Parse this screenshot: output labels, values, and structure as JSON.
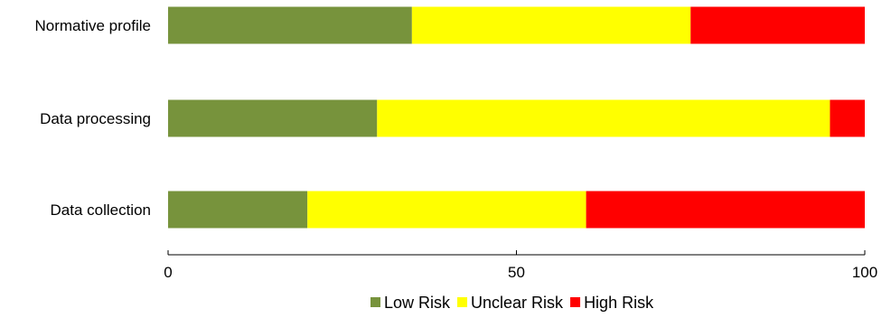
{
  "chart_data": {
    "type": "bar",
    "orientation": "horizontal",
    "stacked": true,
    "categories": [
      "Normative profile",
      "Data processing",
      "Data collection"
    ],
    "series": [
      {
        "name": "Low Risk",
        "values": [
          35,
          30,
          20
        ],
        "color": "#77933c"
      },
      {
        "name": "Unclear Risk",
        "values": [
          40,
          65,
          40
        ],
        "color": "#ffff00"
      },
      {
        "name": "High Risk",
        "values": [
          25,
          5,
          40
        ],
        "color": "#ff0000"
      }
    ],
    "xlim": [
      0,
      100
    ],
    "xticks": [
      "0",
      "50",
      "100"
    ],
    "grid": false,
    "legend_position": "bottom"
  }
}
